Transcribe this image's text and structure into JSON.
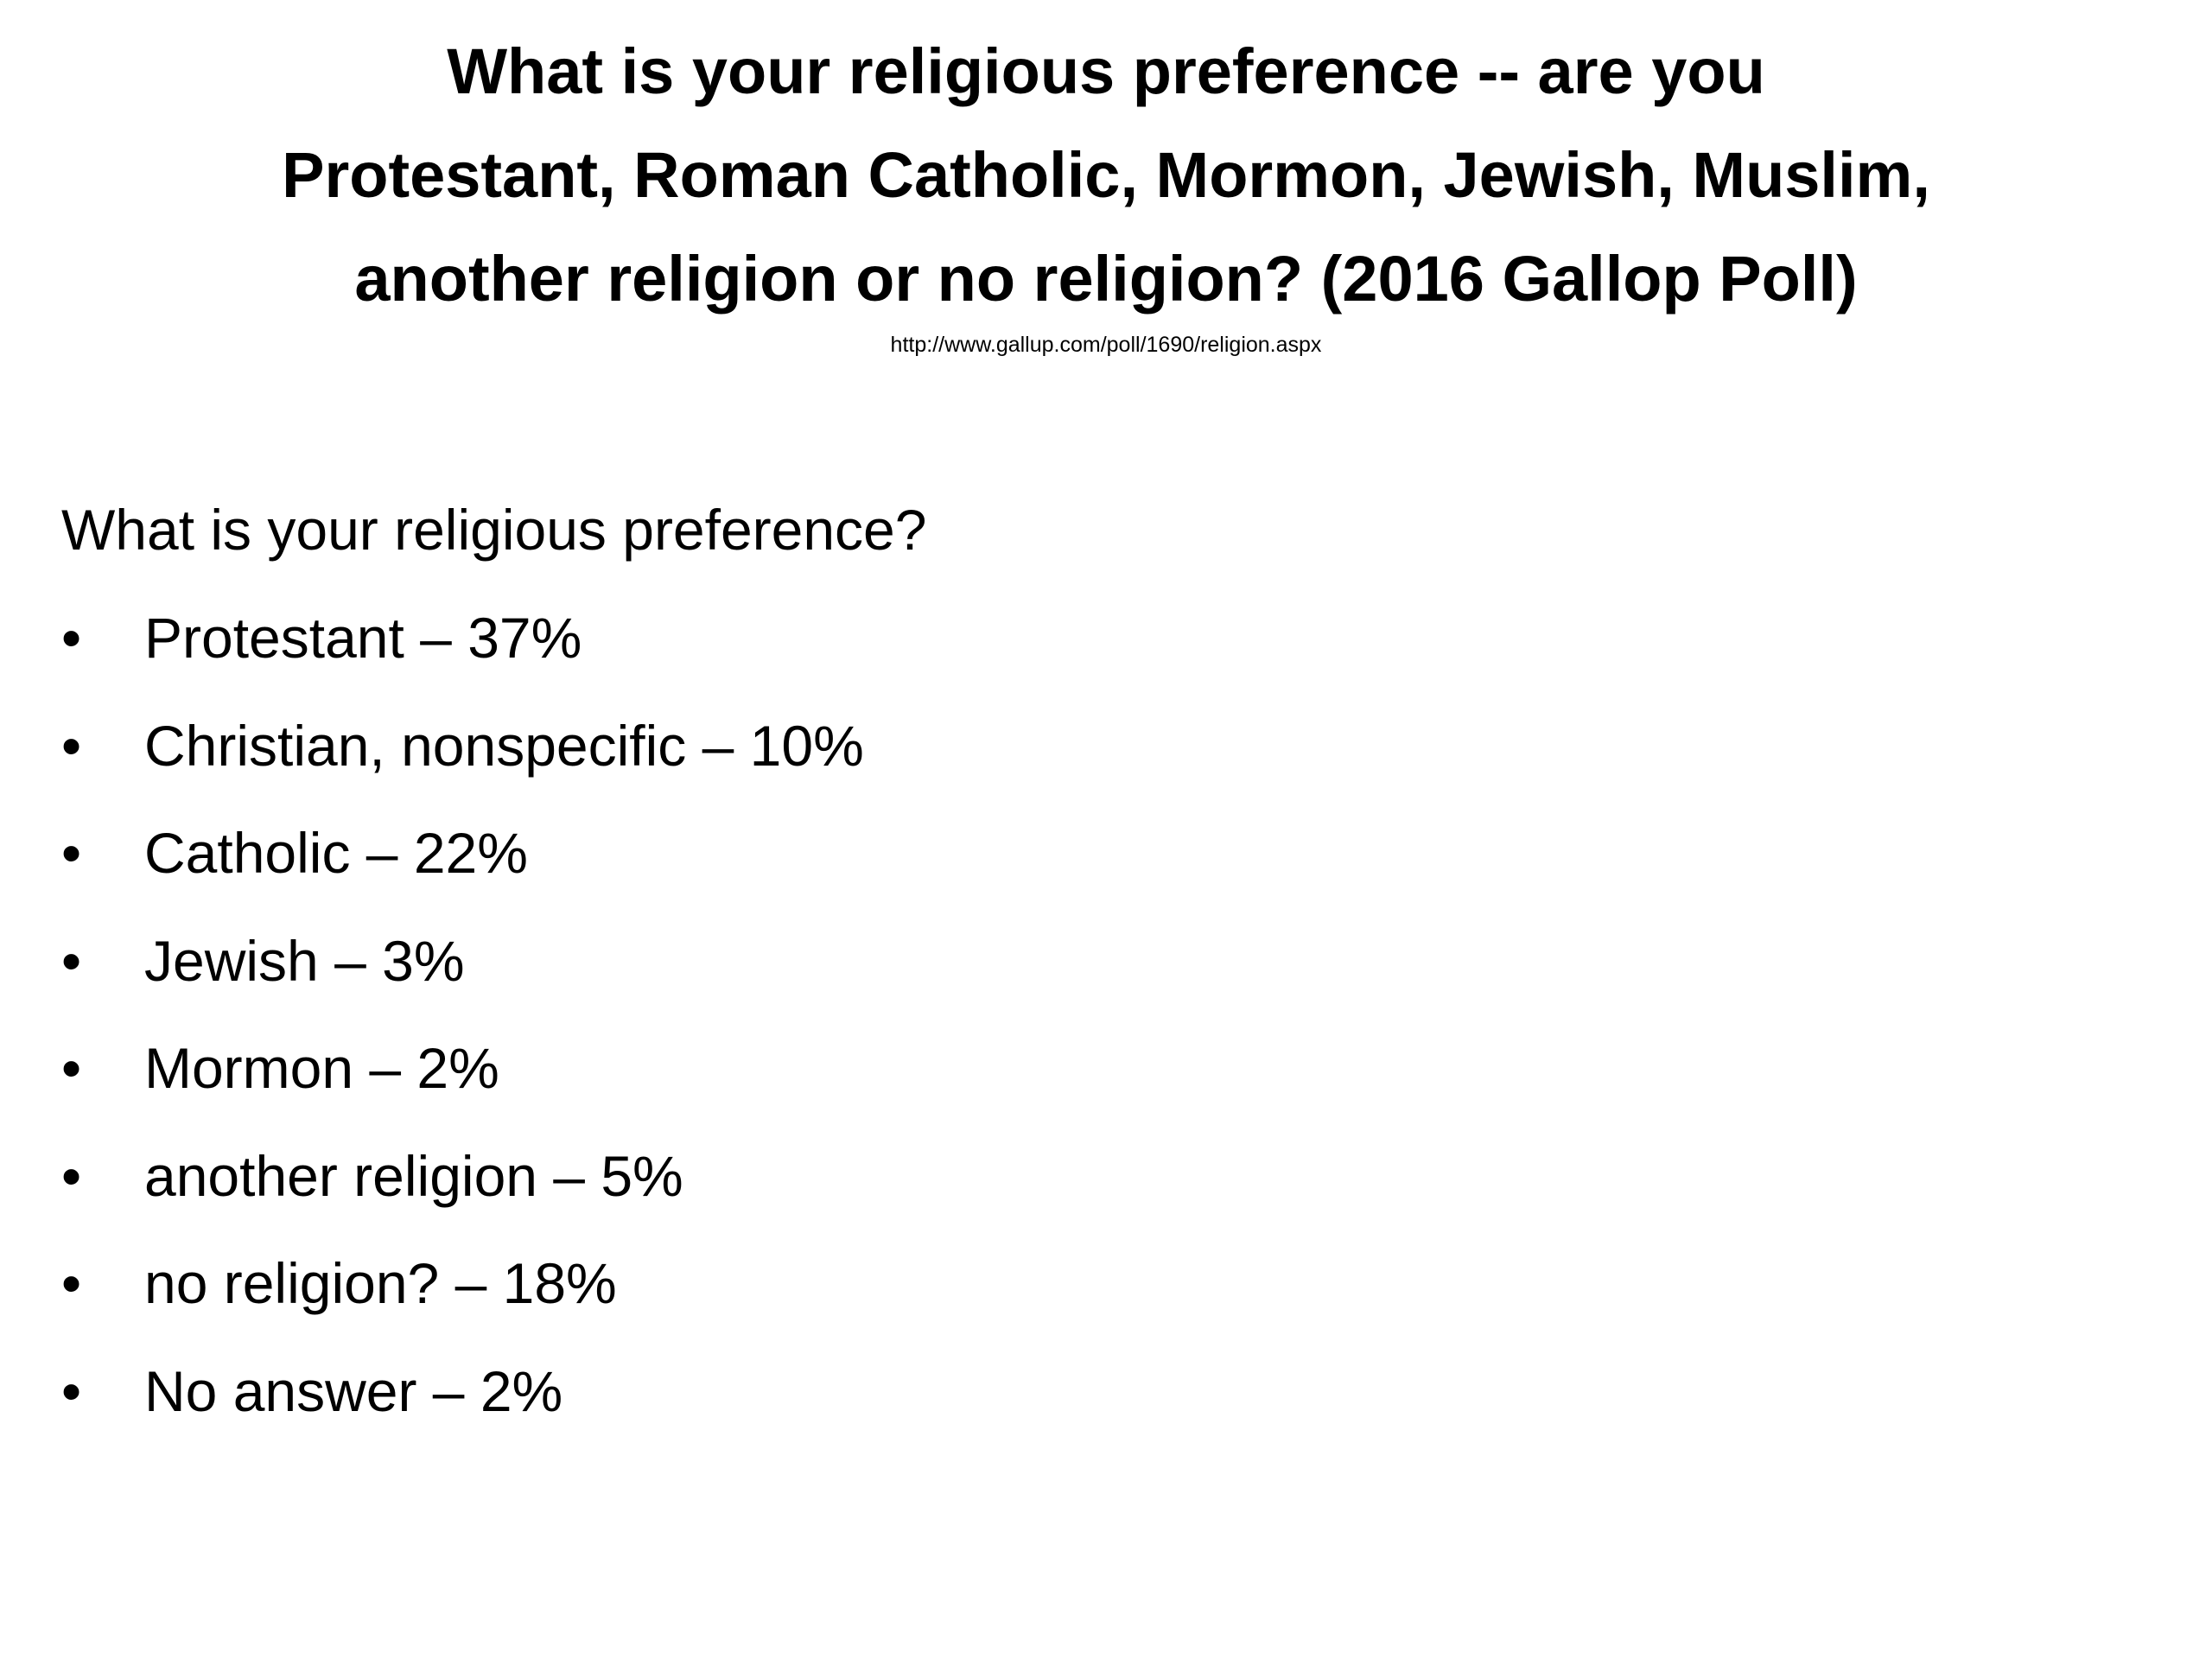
{
  "header": {
    "title_lines": [
      "What is your religious preference -- are you",
      "Protestant, Roman Catholic, Mormon, Jewish, Muslim,",
      "another religion or no religion? (2016 Gallop Poll)"
    ],
    "source": "http://www.gallup.com/poll/1690/religion.aspx"
  },
  "body": {
    "question": "What is your religious preference?",
    "items": [
      "Protestant – 37%",
      "Christian, nonspecific – 10%",
      "Catholic – 22%",
      "Jewish – 3%",
      "Mormon – 2%",
      "another religion – 5%",
      "no religion? – 18%",
      "No answer – 2%"
    ]
  }
}
